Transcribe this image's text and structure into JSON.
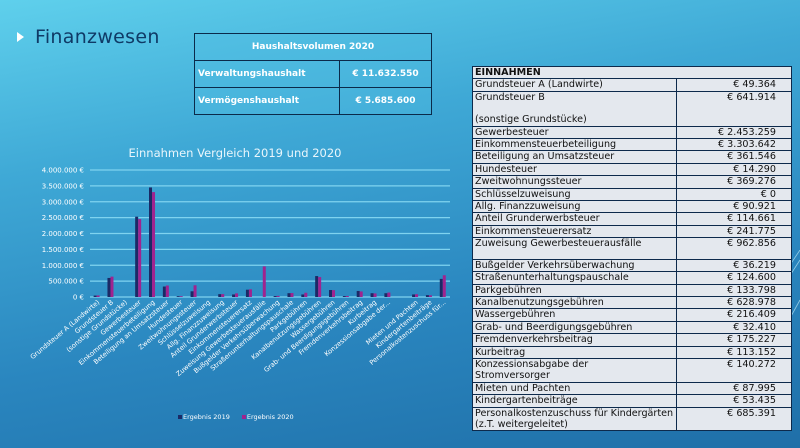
{
  "slide": {
    "title": "Finanzwesen",
    "bullet_icon": "triangle-bullet"
  },
  "haushalt": {
    "header": "Haushaltsvolumen 2020",
    "rows": [
      {
        "label": "Verwaltungshaushalt",
        "value": "€ 11.632.550"
      },
      {
        "label": "Vermögenshaushalt",
        "value": "€ 5.685.600"
      }
    ]
  },
  "einnahmen": {
    "header": "EINNAHMEN",
    "rows": [
      {
        "label": "Grundsteuer A (Landwirte)",
        "value": "€ 49.364"
      },
      {
        "label": "Grundsteuer B",
        "label2": "(sonstige Grundstücke)",
        "value": "€ 641.914"
      },
      {
        "label": "Gewerbesteuer",
        "value": "€ 2.453.259"
      },
      {
        "label": "Einkommensteuerbeteiligung",
        "value": "€ 3.303.642"
      },
      {
        "label": "Beteiligung an Umsatzsteuer",
        "value": "€ 361.546"
      },
      {
        "label": "Hundesteuer",
        "value": "€ 14.290"
      },
      {
        "label": "Zweitwohnungssteuer",
        "value": "€ 369.276"
      },
      {
        "label": "Schlüsselzuweisung",
        "value": "€ 0"
      },
      {
        "label": "Allg. Finanzzuweisung",
        "value": "€ 90.921"
      },
      {
        "label": "Anteil Grunderwerbsteuer",
        "value": "€ 114.661"
      },
      {
        "label": "Einkommensteuerersatz",
        "value": "€ 241.775"
      },
      {
        "label": "Zuweisung Gewerbesteuerausfälle",
        "label2": "",
        "value": "€ 962.856"
      },
      {
        "label": "Bußgelder Verkehrsüberwachung",
        "value": "€ 36.219"
      },
      {
        "label": "Straßenunterhaltungspauschale",
        "value": "€ 124.600"
      },
      {
        "label": "Parkgebühren",
        "value": "€ 133.798"
      },
      {
        "label": "Kanalbenutzungsgebühren",
        "value": "€ 628.978"
      },
      {
        "label": "Wassergebühren",
        "value": "€ 216.409"
      },
      {
        "label": "Grab- und Beerdigungsgebühren",
        "value": "€ 32.410"
      },
      {
        "label": "Fremdenverkehrsbeitrag",
        "value": "€ 175.227"
      },
      {
        "label": "Kurbeitrag",
        "value": "€ 113.152"
      },
      {
        "label": "Konzessionsabgabe der",
        "label2": "Stromversorger",
        "value": "€ 140.272"
      },
      {
        "label": "Mieten und Pachten",
        "value": "€ 87.995"
      },
      {
        "label": "Kindergartenbeiträge",
        "value": "€ 53.435"
      },
      {
        "label": "Personalkostenzuschuss für Kindergärten",
        "label2": "(z.T. weitergeleitet)",
        "value": "€ 685.391"
      }
    ]
  },
  "colors": {
    "series_2019": "#1b2a66",
    "series_2020": "#a0238f",
    "gridline": "#7fd3ef",
    "axis_text": "#ffffff"
  },
  "chart_data": {
    "type": "bar",
    "title": "Einnahmen Vergleich 2019 und 2020",
    "xlabel": "",
    "ylabel": "",
    "ylim": [
      0,
      4000000
    ],
    "yticks": [
      0,
      500000,
      1000000,
      1500000,
      2000000,
      2500000,
      3000000,
      3500000,
      4000000
    ],
    "ytick_labels": [
      "0 €",
      "500.000 €",
      "1.000.000 €",
      "1.500.000 €",
      "2.000.000 €",
      "2.500.000 €",
      "3.000.000 €",
      "3.500.000 €",
      "4.000.000 €"
    ],
    "grid": true,
    "legend_position": "bottom",
    "categories": [
      "Grundsteuer A (Landwirte)",
      "Grundsteuer B",
      "(sonstige Grundstücke)",
      "Gewerbesteuer",
      "Einkommensteuerbeteiligung",
      "Beteiligung an Umsatzsteuer",
      "Hundesteuer",
      "Zweitwohnungssteuer",
      "Schlüsselzuweisung",
      "Allg. Finanzzuweisung",
      "Anteil Grunderwerbsteuer",
      "Einkommensteuerersatz",
      "Zuweisung Gewerbesteuerausfälle",
      "Bußgelder Verkehrsüberwachung",
      "Straßenunterhaltungspauschale",
      "Parkgebühren",
      "Kanalbenutzungsgebühren",
      "Wassergebühren",
      "Grab- und Beerdigungsgebühren",
      "Fremdenverkehrsbeitrag",
      "Kurbeitrag",
      "Konzessionsabgabe der...",
      "",
      "Mieten und Pachten",
      "Kindergartenbeiträge",
      "Personalkostenzuschuss für..."
    ],
    "series": [
      {
        "name": "Ergebnis 2019",
        "values": [
          45000,
          600000,
          0,
          2530000,
          3450000,
          330000,
          14000,
          180000,
          0,
          90000,
          80000,
          230000,
          0,
          30000,
          120000,
          80000,
          660000,
          220000,
          30000,
          190000,
          120000,
          120000,
          0,
          80000,
          60000,
          570000
        ]
      },
      {
        "name": "Ergebnis 2020",
        "values": [
          49364,
          641914,
          0,
          2453259,
          3303642,
          361546,
          14290,
          369276,
          0,
          90921,
          114661,
          241775,
          962856,
          36219,
          124600,
          133798,
          628978,
          216409,
          32410,
          175227,
          113152,
          140272,
          0,
          87995,
          53435,
          685391
        ]
      }
    ]
  }
}
